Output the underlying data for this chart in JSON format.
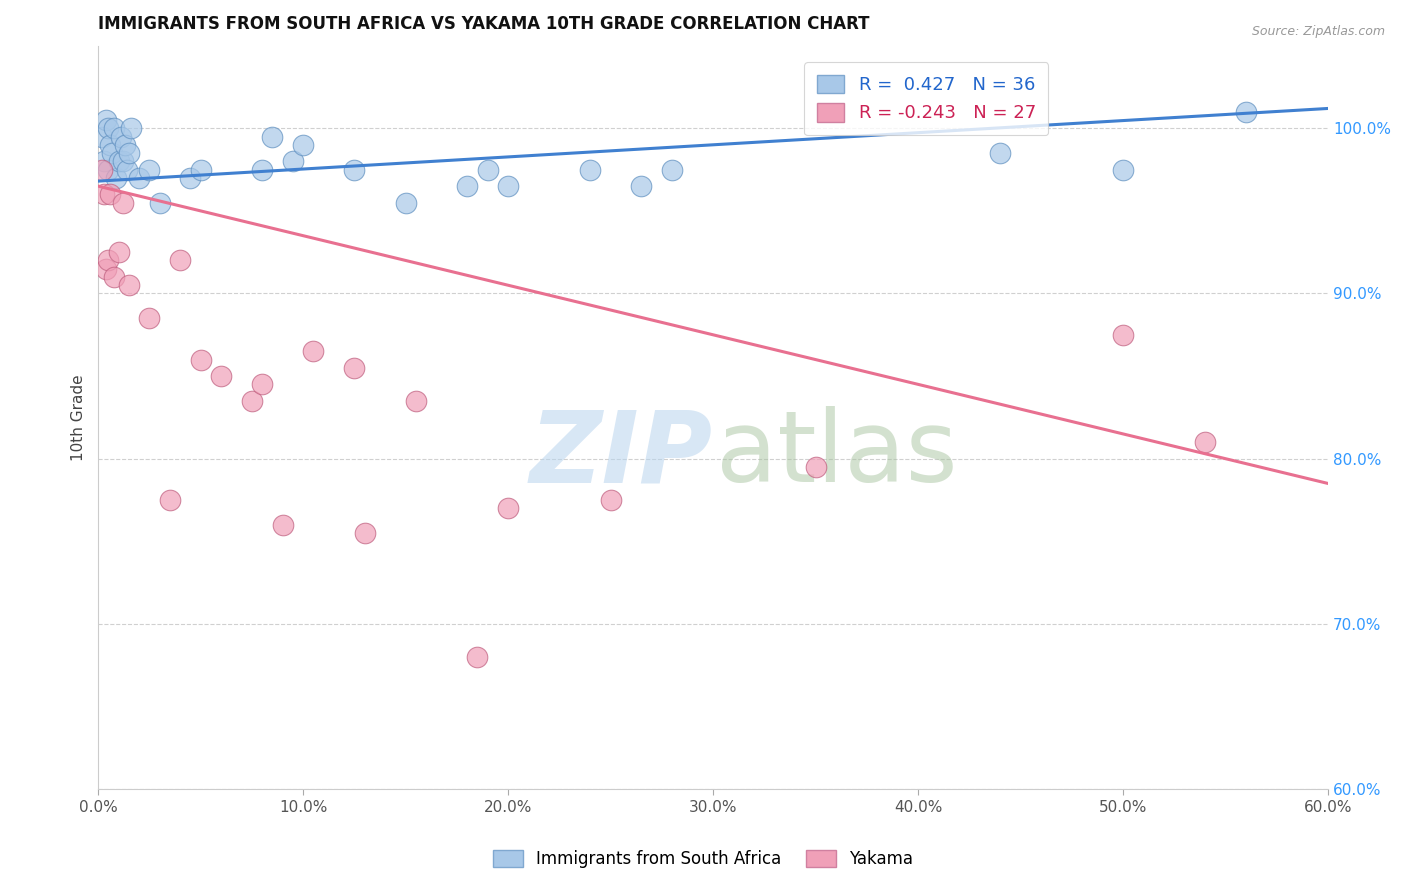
{
  "title": "IMMIGRANTS FROM SOUTH AFRICA VS YAKAMA 10TH GRADE CORRELATION CHART",
  "source": "Source: ZipAtlas.com",
  "ylabel": "10th Grade",
  "x_tick_labels": [
    "0.0%",
    "10.0%",
    "20.0%",
    "30.0%",
    "40.0%",
    "50.0%",
    "60.0%"
  ],
  "x_tick_values": [
    0.0,
    10.0,
    20.0,
    30.0,
    40.0,
    50.0,
    60.0
  ],
  "y_tick_labels": [
    "60.0%",
    "70.0%",
    "80.0%",
    "90.0%",
    "100.0%"
  ],
  "y_tick_values": [
    60.0,
    70.0,
    80.0,
    90.0,
    100.0
  ],
  "xlim": [
    0.0,
    60.0
  ],
  "ylim": [
    60.0,
    105.0
  ],
  "blue_R": 0.427,
  "blue_N": 36,
  "pink_R": -0.243,
  "pink_N": 27,
  "blue_color": "#a8c8e8",
  "pink_color": "#f0a0b8",
  "blue_line_color": "#4080d0",
  "pink_line_color": "#e87090",
  "watermark_zip": "ZIP",
  "watermark_atlas": "atlas",
  "legend_label_blue": "Immigrants from South Africa",
  "legend_label_pink": "Yakama",
  "blue_dots_x": [
    0.2,
    0.3,
    0.4,
    0.5,
    0.5,
    0.6,
    0.7,
    0.8,
    0.9,
    1.0,
    1.1,
    1.2,
    1.3,
    1.4,
    1.5,
    1.6,
    2.0,
    2.5,
    3.0,
    4.5,
    5.0,
    8.0,
    8.5,
    9.5,
    10.0,
    12.5,
    15.0,
    18.0,
    19.0,
    20.0,
    24.0,
    26.5,
    28.0,
    44.0,
    50.0,
    56.0
  ],
  "blue_dots_y": [
    99.5,
    98.0,
    100.5,
    97.5,
    100.0,
    99.0,
    98.5,
    100.0,
    97.0,
    98.0,
    99.5,
    98.0,
    99.0,
    97.5,
    98.5,
    100.0,
    97.0,
    97.5,
    95.5,
    97.0,
    97.5,
    97.5,
    99.5,
    98.0,
    99.0,
    97.5,
    95.5,
    96.5,
    97.5,
    96.5,
    97.5,
    96.5,
    97.5,
    98.5,
    97.5,
    101.0
  ],
  "pink_dots_x": [
    0.2,
    0.3,
    0.4,
    0.5,
    0.8,
    1.0,
    1.5,
    2.5,
    4.0,
    5.0,
    7.5,
    8.0,
    10.5,
    12.5,
    15.5,
    20.0,
    25.0,
    35.0,
    50.0,
    54.0,
    0.6,
    1.2,
    3.5,
    6.0,
    9.0,
    13.0,
    18.5
  ],
  "pink_dots_y": [
    97.5,
    96.0,
    91.5,
    92.0,
    91.0,
    92.5,
    90.5,
    88.5,
    92.0,
    86.0,
    83.5,
    84.5,
    86.5,
    85.5,
    83.5,
    77.0,
    77.5,
    79.5,
    87.5,
    81.0,
    96.0,
    95.5,
    77.5,
    85.0,
    76.0,
    75.5,
    68.0
  ],
  "blue_trend_x": [
    0.0,
    60.0
  ],
  "blue_trend_y": [
    96.8,
    101.2
  ],
  "pink_trend_x": [
    0.0,
    60.0
  ],
  "pink_trend_y": [
    96.5,
    78.5
  ]
}
